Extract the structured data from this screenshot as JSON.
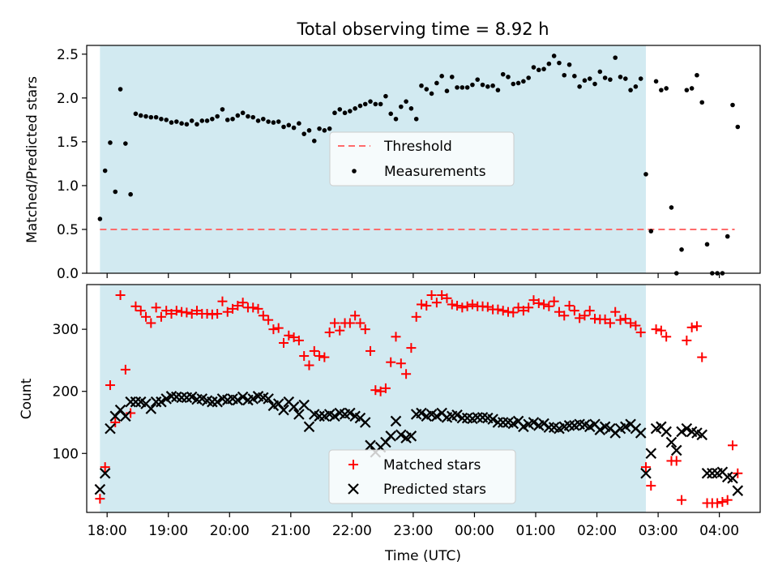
{
  "title": "Total observing time = 8.92 h",
  "chart_data": [
    {
      "type": "scatter",
      "panel": "top",
      "ylabel": "Matched/Predicted stars",
      "ylim": [
        0,
        2.6
      ],
      "yticks": [
        0.0,
        0.5,
        1.0,
        1.5,
        2.0,
        2.5
      ],
      "ytick_labels": [
        "0.0",
        "0.5",
        "1.0",
        "1.5",
        "2.0",
        "2.5"
      ],
      "shaded_span": [
        "17:53",
        "02:48"
      ],
      "shade_color": "#add8e6",
      "threshold": {
        "name": "Threshold",
        "value": 0.5,
        "x_range": [
          "17:53",
          "04:15"
        ],
        "color": "#ff6b6b"
      },
      "series": [
        {
          "name": "Measurements",
          "color": "#000000",
          "x": [
            "17:53",
            "17:58",
            "18:03",
            "18:08",
            "18:13",
            "18:18",
            "18:23",
            "18:28",
            "18:33",
            "18:38",
            "18:43",
            "18:48",
            "18:53",
            "18:58",
            "19:03",
            "19:08",
            "19:13",
            "19:18",
            "19:23",
            "19:28",
            "19:33",
            "19:38",
            "19:43",
            "19:48",
            "19:53",
            "19:58",
            "20:03",
            "20:08",
            "20:13",
            "20:18",
            "20:23",
            "20:28",
            "20:33",
            "20:38",
            "20:43",
            "20:48",
            "20:53",
            "20:58",
            "21:03",
            "21:08",
            "21:13",
            "21:18",
            "21:23",
            "21:28",
            "21:33",
            "21:38",
            "21:43",
            "21:48",
            "21:53",
            "21:58",
            "22:03",
            "22:08",
            "22:13",
            "22:18",
            "22:23",
            "22:28",
            "22:33",
            "22:38",
            "22:43",
            "22:48",
            "22:53",
            "22:58",
            "23:03",
            "23:08",
            "23:13",
            "23:18",
            "23:23",
            "23:28",
            "23:33",
            "23:38",
            "23:43",
            "23:48",
            "23:53",
            "23:58",
            "00:03",
            "00:08",
            "00:13",
            "00:18",
            "00:23",
            "00:28",
            "00:33",
            "00:38",
            "00:43",
            "00:48",
            "00:53",
            "00:58",
            "01:03",
            "01:08",
            "01:13",
            "01:18",
            "01:23",
            "01:28",
            "01:33",
            "01:38",
            "01:43",
            "01:48",
            "01:53",
            "01:58",
            "02:03",
            "02:08",
            "02:13",
            "02:18",
            "02:23",
            "02:28",
            "02:33",
            "02:38",
            "02:43",
            "02:48",
            "02:53",
            "02:58",
            "03:03",
            "03:08",
            "03:13",
            "03:18",
            "03:23",
            "03:28",
            "03:33",
            "03:38",
            "03:43",
            "03:48",
            "03:53",
            "03:58",
            "04:03",
            "04:08",
            "04:13",
            "04:18"
          ],
          "y": [
            0.62,
            1.17,
            1.49,
            0.93,
            2.1,
            1.48,
            0.9,
            1.82,
            1.8,
            1.79,
            1.78,
            1.78,
            1.76,
            1.75,
            1.72,
            1.73,
            1.71,
            1.7,
            1.74,
            1.7,
            1.74,
            1.74,
            1.76,
            1.79,
            1.87,
            1.75,
            1.76,
            1.8,
            1.83,
            1.79,
            1.78,
            1.74,
            1.76,
            1.73,
            1.72,
            1.73,
            1.67,
            1.69,
            1.66,
            1.71,
            1.59,
            1.63,
            1.51,
            1.65,
            1.63,
            1.65,
            1.83,
            1.87,
            1.83,
            1.85,
            1.88,
            1.91,
            1.93,
            1.96,
            1.93,
            1.93,
            2.02,
            1.82,
            1.76,
            1.9,
            1.96,
            1.88,
            1.76,
            2.14,
            2.1,
            2.05,
            2.17,
            2.25,
            2.08,
            2.24,
            2.12,
            2.12,
            2.12,
            2.15,
            2.21,
            2.15,
            2.13,
            2.14,
            2.09,
            2.27,
            2.24,
            2.16,
            2.17,
            2.19,
            2.23,
            2.35,
            2.32,
            2.33,
            2.39,
            2.48,
            2.4,
            2.26,
            2.38,
            2.25,
            2.13,
            2.2,
            2.22,
            2.16,
            2.3,
            2.23,
            2.21,
            2.46,
            2.24,
            2.22,
            2.09,
            2.13,
            2.22,
            1.13,
            0.48,
            2.19,
            2.09,
            2.11,
            0.75,
            0.0,
            0.27,
            2.09,
            2.11,
            2.26,
            1.95,
            0.33,
            0.0,
            0.0,
            0.0,
            0.42,
            1.92,
            1.67
          ]
        }
      ],
      "legend": {
        "placement": "center",
        "entries": [
          "Threshold",
          "Measurements"
        ]
      }
    },
    {
      "type": "scatter",
      "panel": "bottom",
      "xlabel": "Time (UTC)",
      "ylabel": "Count",
      "ylim": [
        5,
        372
      ],
      "yticks": [
        100,
        200,
        300
      ],
      "ytick_labels": [
        "100",
        "200",
        "300"
      ],
      "xticks": [
        "18:00",
        "19:00",
        "20:00",
        "21:00",
        "22:00",
        "23:00",
        "00:00",
        "01:00",
        "02:00",
        "03:00",
        "04:00"
      ],
      "xtick_labels": [
        "18:00",
        "19:00",
        "20:00",
        "21:00",
        "22:00",
        "23:00",
        "00:00",
        "01:00",
        "02:00",
        "03:00",
        "04:00"
      ],
      "xlim": [
        "17:40",
        "04:40"
      ],
      "shaded_span": [
        "17:53",
        "02:48"
      ],
      "series": [
        {
          "name": "Matched stars",
          "color": "#ff0000",
          "marker": "plus",
          "x": [
            "17:53",
            "17:58",
            "18:03",
            "18:08",
            "18:13",
            "18:18",
            "18:23",
            "18:28",
            "18:33",
            "18:38",
            "18:43",
            "18:48",
            "18:53",
            "18:58",
            "19:03",
            "19:08",
            "19:13",
            "19:18",
            "19:23",
            "19:28",
            "19:33",
            "19:38",
            "19:43",
            "19:48",
            "19:53",
            "19:58",
            "20:03",
            "20:08",
            "20:13",
            "20:18",
            "20:23",
            "20:28",
            "20:33",
            "20:38",
            "20:43",
            "20:48",
            "20:53",
            "20:58",
            "21:03",
            "21:08",
            "21:13",
            "21:18",
            "21:23",
            "21:28",
            "21:33",
            "21:38",
            "21:43",
            "21:48",
            "21:53",
            "21:58",
            "22:03",
            "22:08",
            "22:13",
            "22:18",
            "22:23",
            "22:28",
            "22:33",
            "22:38",
            "22:43",
            "22:48",
            "22:53",
            "22:58",
            "23:03",
            "23:08",
            "23:13",
            "23:18",
            "23:23",
            "23:28",
            "23:33",
            "23:38",
            "23:43",
            "23:48",
            "23:53",
            "23:58",
            "00:03",
            "00:08",
            "00:13",
            "00:18",
            "00:23",
            "00:28",
            "00:33",
            "00:38",
            "00:43",
            "00:48",
            "00:53",
            "00:58",
            "01:03",
            "01:08",
            "01:13",
            "01:18",
            "01:23",
            "01:28",
            "01:33",
            "01:38",
            "01:43",
            "01:48",
            "01:53",
            "01:58",
            "02:03",
            "02:08",
            "02:13",
            "02:18",
            "02:23",
            "02:28",
            "02:33",
            "02:38",
            "02:43",
            "02:48",
            "02:53",
            "02:58",
            "03:03",
            "03:08",
            "03:13",
            "03:18",
            "03:23",
            "03:28",
            "03:33",
            "03:38",
            "03:43",
            "03:48",
            "03:53",
            "03:58",
            "04:03",
            "04:08",
            "04:13",
            "04:18"
          ],
          "y": [
            27,
            78,
            210,
            150,
            355,
            235,
            165,
            337,
            330,
            320,
            310,
            335,
            320,
            330,
            325,
            330,
            328,
            327,
            325,
            330,
            325,
            325,
            324,
            325,
            345,
            328,
            333,
            338,
            343,
            335,
            335,
            333,
            322,
            315,
            300,
            302,
            278,
            290,
            287,
            282,
            257,
            242,
            265,
            257,
            255,
            295,
            310,
            298,
            310,
            310,
            322,
            310,
            300,
            265,
            202,
            200,
            205,
            247,
            288,
            245,
            228,
            270,
            320,
            340,
            338,
            355,
            343,
            355,
            350,
            340,
            338,
            335,
            337,
            340,
            337,
            337,
            336,
            332,
            332,
            330,
            328,
            327,
            335,
            330,
            335,
            347,
            342,
            340,
            337,
            345,
            328,
            322,
            338,
            330,
            318,
            322,
            330,
            317,
            316,
            316,
            310,
            328,
            315,
            317,
            310,
            306,
            295,
            78,
            48,
            300,
            298,
            288,
            88,
            88,
            25,
            282,
            303,
            305,
            255,
            20,
            20,
            20,
            22,
            25,
            113,
            68
          ]
        },
        {
          "name": "Predicted stars",
          "color": "#000000",
          "marker": "x",
          "x": [
            "17:53",
            "17:58",
            "18:03",
            "18:08",
            "18:13",
            "18:18",
            "18:23",
            "18:28",
            "18:33",
            "18:38",
            "18:43",
            "18:48",
            "18:53",
            "18:58",
            "19:03",
            "19:08",
            "19:13",
            "19:18",
            "19:23",
            "19:28",
            "19:33",
            "19:38",
            "19:43",
            "19:48",
            "19:53",
            "19:58",
            "20:03",
            "20:08",
            "20:13",
            "20:18",
            "20:23",
            "20:28",
            "20:33",
            "20:38",
            "20:43",
            "20:48",
            "20:53",
            "20:58",
            "21:03",
            "21:08",
            "21:13",
            "21:18",
            "21:23",
            "21:28",
            "21:33",
            "21:38",
            "21:43",
            "21:48",
            "21:53",
            "21:58",
            "22:03",
            "22:08",
            "22:13",
            "22:18",
            "22:23",
            "22:28",
            "22:33",
            "22:38",
            "22:43",
            "22:48",
            "22:53",
            "22:58",
            "23:03",
            "23:08",
            "23:13",
            "23:18",
            "23:23",
            "23:28",
            "23:33",
            "23:38",
            "23:43",
            "23:48",
            "23:53",
            "23:58",
            "00:03",
            "00:08",
            "00:13",
            "00:18",
            "00:23",
            "00:28",
            "00:33",
            "00:38",
            "00:43",
            "00:48",
            "00:53",
            "00:58",
            "01:03",
            "01:08",
            "01:13",
            "01:18",
            "01:23",
            "01:28",
            "01:33",
            "01:38",
            "01:43",
            "01:48",
            "01:53",
            "01:58",
            "02:03",
            "02:08",
            "02:13",
            "02:18",
            "02:23",
            "02:28",
            "02:33",
            "02:38",
            "02:43",
            "02:48",
            "02:53",
            "02:58",
            "03:03",
            "03:08",
            "03:13",
            "03:18",
            "03:23",
            "03:28",
            "03:33",
            "03:38",
            "03:43",
            "03:48",
            "03:53",
            "03:58",
            "04:03",
            "04:08",
            "04:13",
            "04:18"
          ],
          "y": [
            42,
            68,
            140,
            160,
            170,
            160,
            183,
            183,
            183,
            180,
            172,
            183,
            183,
            188,
            192,
            191,
            190,
            190,
            191,
            187,
            188,
            185,
            183,
            183,
            188,
            186,
            188,
            186,
            191,
            186,
            188,
            192,
            190,
            188,
            177,
            180,
            170,
            183,
            175,
            163,
            178,
            143,
            163,
            160,
            160,
            163,
            160,
            165,
            163,
            165,
            160,
            157,
            150,
            113,
            102,
            110,
            118,
            128,
            152,
            130,
            125,
            128,
            163,
            165,
            160,
            163,
            160,
            165,
            158,
            160,
            162,
            157,
            157,
            156,
            158,
            158,
            157,
            155,
            150,
            150,
            150,
            148,
            152,
            143,
            147,
            150,
            145,
            148,
            142,
            142,
            140,
            143,
            145,
            145,
            147,
            146,
            143,
            147,
            138,
            143,
            140,
            133,
            140,
            143,
            147,
            140,
            133,
            68,
            100,
            140,
            143,
            135,
            118,
            105,
            135,
            140,
            135,
            133,
            130,
            68,
            68,
            68,
            70,
            62,
            60,
            40
          ]
        }
      ],
      "legend": {
        "placement": "lower center",
        "entries": [
          "Matched stars",
          "Predicted stars"
        ]
      }
    }
  ]
}
